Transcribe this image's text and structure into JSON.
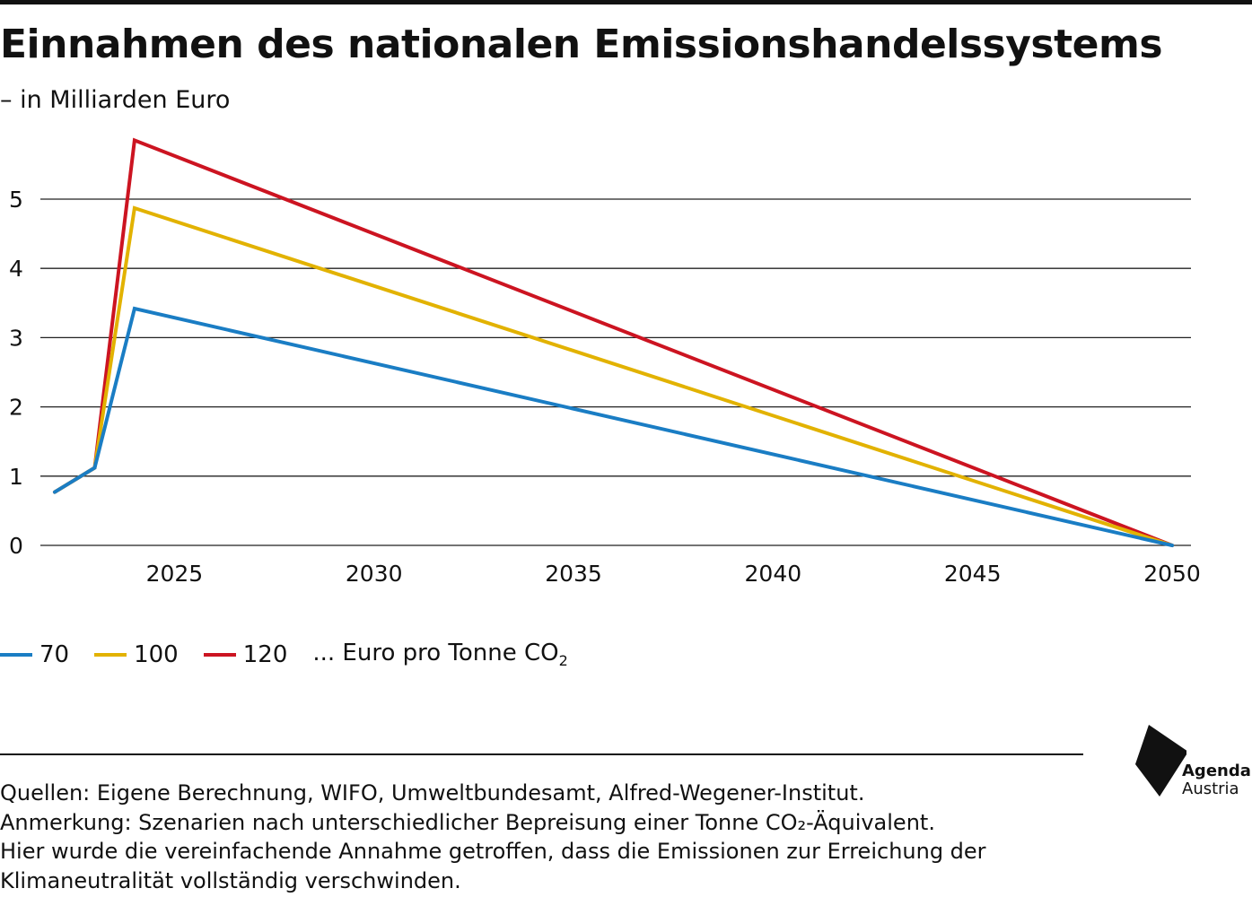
{
  "header": {
    "title": "Einnahmen des nationalen Emissionshandelssystems",
    "subtitle": "– in Milliarden Euro"
  },
  "legend": {
    "items": [
      {
        "label": "70",
        "color": "#1a7dc4"
      },
      {
        "label": "100",
        "color": "#e2b200"
      },
      {
        "label": "120",
        "color": "#cc1421"
      }
    ],
    "note_text": "... Euro pro Tonne CO",
    "note_sub": "2"
  },
  "footer": {
    "lines": [
      "Quellen: Eigene Berechnung, WIFO, Umweltbundesamt, Alfred-Wegener-Institut.",
      "Anmerkung: Szenarien nach unterschiedlicher Bepreisung einer Tonne CO₂-Äquivalent.",
      "Hier wurde die vereinfachende Annahme getroffen, dass die Emissionen zur Erreichung der",
      "Klimaneutralität vollständig verschwinden."
    ]
  },
  "logo": {
    "line1": "Agenda",
    "line2": "Austria"
  },
  "chart_data": {
    "type": "line",
    "title": "Einnahmen des nationalen Emissionshandelssystems",
    "subtitle": "– in Milliarden Euro",
    "xlim": [
      2022,
      2050
    ],
    "ylim": [
      0,
      6
    ],
    "xticks": [
      2025,
      2030,
      2035,
      2040,
      2045,
      2050
    ],
    "yticks": [
      0,
      1,
      2,
      3,
      4,
      5
    ],
    "grid": "horizontal",
    "legend_position": "bottom-left",
    "series": [
      {
        "name": "120",
        "color": "#cc1421",
        "points": [
          [
            2022,
            0.77
          ],
          [
            2023,
            1.12
          ],
          [
            2024,
            5.85
          ],
          [
            2050,
            0
          ]
        ]
      },
      {
        "name": "100",
        "color": "#e2b200",
        "points": [
          [
            2022,
            0.77
          ],
          [
            2023,
            1.12
          ],
          [
            2024,
            4.87
          ],
          [
            2050,
            0
          ]
        ]
      },
      {
        "name": "70",
        "color": "#1a7dc4",
        "points": [
          [
            2022,
            0.77
          ],
          [
            2023,
            1.12
          ],
          [
            2024,
            3.42
          ],
          [
            2050,
            0
          ]
        ]
      }
    ]
  }
}
